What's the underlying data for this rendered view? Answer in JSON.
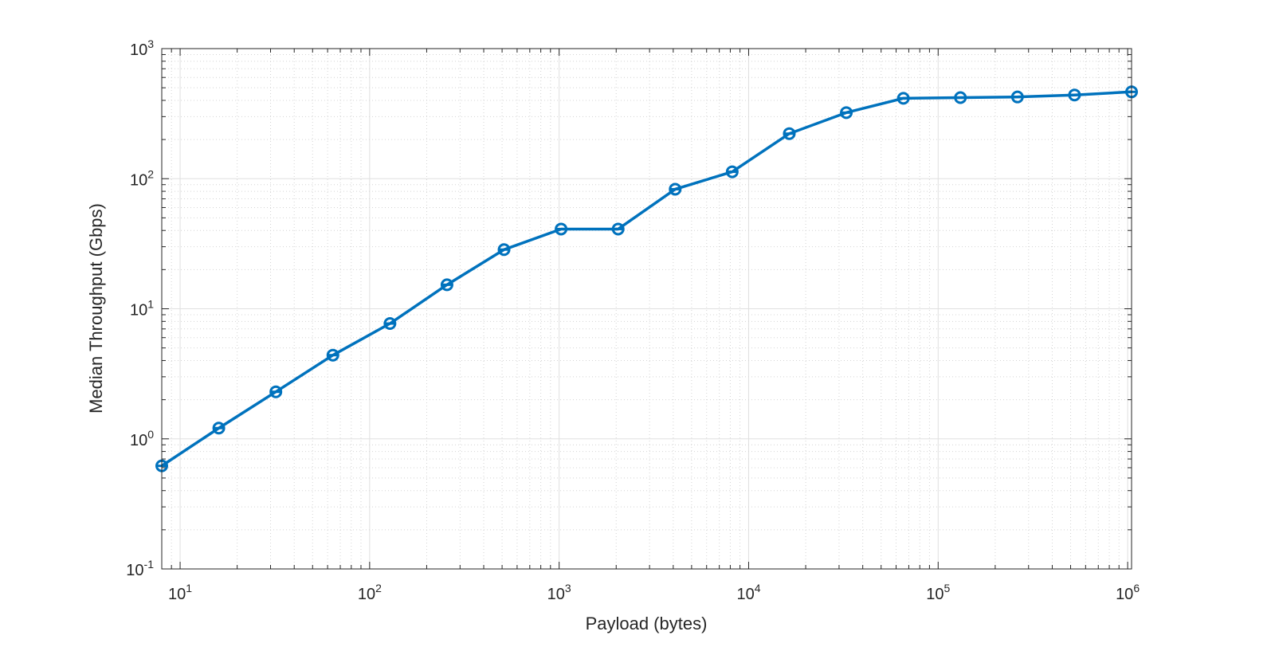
{
  "chart_data": {
    "type": "line",
    "title": "",
    "xlabel": "Payload (bytes)",
    "ylabel": "Median Throughput (Gbps)",
    "xscale": "log",
    "yscale": "log",
    "xlim": [
      8,
      1048576
    ],
    "ylim": [
      0.1,
      1000
    ],
    "grid": true,
    "minor_grid": true,
    "x_ticks": [
      {
        "value": 10,
        "base": "10",
        "exp": "1"
      },
      {
        "value": 100,
        "base": "10",
        "exp": "2"
      },
      {
        "value": 1000,
        "base": "10",
        "exp": "3"
      },
      {
        "value": 10000,
        "base": "10",
        "exp": "4"
      },
      {
        "value": 100000,
        "base": "10",
        "exp": "5"
      },
      {
        "value": 1000000,
        "base": "10",
        "exp": "6"
      }
    ],
    "y_ticks": [
      {
        "value": 0.1,
        "base": "10",
        "exp": "-1"
      },
      {
        "value": 1,
        "base": "10",
        "exp": "0"
      },
      {
        "value": 10,
        "base": "10",
        "exp": "1"
      },
      {
        "value": 100,
        "base": "10",
        "exp": "2"
      },
      {
        "value": 1000,
        "base": "10",
        "exp": "3"
      }
    ],
    "series": [
      {
        "color": "#0072BD",
        "marker": "circle",
        "x": [
          8,
          16,
          32,
          64,
          128,
          256,
          512,
          1024,
          2048,
          4096,
          8192,
          16384,
          32768,
          65536,
          131072,
          262144,
          524288,
          1048576
        ],
        "y": [
          0.62,
          1.21,
          2.3,
          4.4,
          7.7,
          15.3,
          28.5,
          41,
          41,
          83,
          113,
          222,
          322,
          415,
          420,
          425,
          440,
          465
        ]
      }
    ]
  }
}
